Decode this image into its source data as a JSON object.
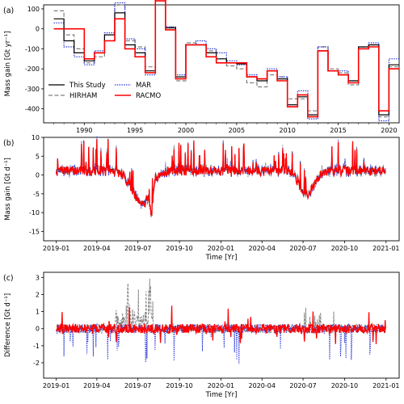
{
  "chart_data": [
    {
      "panel_label": "(a)",
      "type": "line",
      "step": true,
      "ylabel": "Mass gain [Gt yr⁻¹]",
      "xlabel": "",
      "xlim": [
        1986,
        2021
      ],
      "ylim": [
        -470,
        120
      ],
      "xticks": [
        1990,
        1995,
        2000,
        2005,
        2010,
        2015,
        2020
      ],
      "yticks": [
        100,
        0,
        -100,
        -200,
        -300,
        -400
      ],
      "x": [
        1987,
        1988,
        1989,
        1990,
        1991,
        1992,
        1993,
        1994,
        1995,
        1996,
        1997,
        1998,
        1999,
        2000,
        2001,
        2002,
        2003,
        2004,
        2005,
        2006,
        2007,
        2008,
        2009,
        2010,
        2011,
        2012,
        2013,
        2014,
        2015,
        2016,
        2017,
        2018,
        2019,
        2020
      ],
      "legend_position": "lower-left",
      "series": [
        {
          "name": "This Study",
          "color": "#000000",
          "style": "solid",
          "values": [
            50,
            -60,
            -120,
            -160,
            -120,
            -30,
            80,
            -80,
            -120,
            -210,
            150,
            5,
            -240,
            -80,
            -80,
            -120,
            -150,
            -170,
            -175,
            -240,
            -260,
            -210,
            -250,
            -380,
            -340,
            -430,
            -110,
            -210,
            -230,
            -260,
            -90,
            -80,
            -430,
            -180
          ]
        },
        {
          "name": "HIRHAM",
          "color": "#808080",
          "style": "dashed",
          "values": [
            90,
            -30,
            -100,
            -170,
            -140,
            -60,
            120,
            -60,
            -90,
            -190,
            160,
            10,
            -260,
            -70,
            -80,
            -110,
            -150,
            -185,
            -200,
            -270,
            -290,
            -230,
            -240,
            -350,
            -350,
            -410,
            -90,
            -200,
            -220,
            -280,
            -90,
            -80,
            -440,
            -190
          ]
        },
        {
          "name": "MAR",
          "color": "#1f2fd9",
          "style": "dotted",
          "values": [
            30,
            -90,
            -140,
            -180,
            -110,
            -20,
            130,
            -50,
            -100,
            -230,
            165,
            10,
            -230,
            -80,
            -60,
            -100,
            -120,
            -160,
            -180,
            -230,
            -250,
            -200,
            -240,
            -380,
            -310,
            -450,
            -90,
            -210,
            -210,
            -260,
            -100,
            -70,
            -460,
            -150
          ]
        },
        {
          "name": "RACMO",
          "color": "#ff0000",
          "style": "solid",
          "values": [
            0,
            0,
            0,
            -150,
            -120,
            -60,
            50,
            -100,
            -140,
            -220,
            140,
            -5,
            -250,
            -80,
            -80,
            -140,
            -170,
            -170,
            -170,
            -240,
            -250,
            -210,
            -260,
            -390,
            -330,
            -440,
            -110,
            -210,
            -230,
            -270,
            -100,
            -90,
            -410,
            -200
          ]
        }
      ]
    },
    {
      "panel_label": "(b)",
      "type": "line",
      "ylabel": "Mass gain [Gt d⁻¹]",
      "xlabel": "Time [Yr]",
      "ylim": [
        -17.5,
        10
      ],
      "yticks": [
        10,
        5,
        0,
        -5,
        -10,
        -15
      ],
      "xticks": [
        "2019-01",
        "2019-04",
        "2019-07",
        "2019-10",
        "2020-01",
        "2020-04",
        "2020-07",
        "2020-10",
        "2021-01"
      ],
      "daily_range": [
        "2019-01-01",
        "2020-12-31"
      ],
      "series": [
        {
          "name": "This Study",
          "color": "#000000"
        },
        {
          "name": "HIRHAM",
          "color": "#808080"
        },
        {
          "name": "MAR",
          "color": "#1f2fd9"
        },
        {
          "name": "RACMO",
          "color": "#ff0000"
        }
      ]
    },
    {
      "panel_label": "(c)",
      "type": "line",
      "ylabel": "Difference [Gt d⁻¹]",
      "xlabel": "Time [Yr]",
      "ylim": [
        -2.9,
        3.3
      ],
      "yticks": [
        3,
        2,
        1,
        0,
        -1,
        -2
      ],
      "xticks": [
        "2019-01",
        "2019-04",
        "2019-07",
        "2019-10",
        "2020-01",
        "2020-04",
        "2020-07",
        "2020-10",
        "2021-01"
      ],
      "daily_range": [
        "2019-01-01",
        "2020-12-31"
      ],
      "series": [
        {
          "name": "HIRHAM",
          "color": "#808080"
        },
        {
          "name": "MAR",
          "color": "#1f2fd9"
        },
        {
          "name": "RACMO",
          "color": "#ff0000"
        }
      ]
    }
  ]
}
